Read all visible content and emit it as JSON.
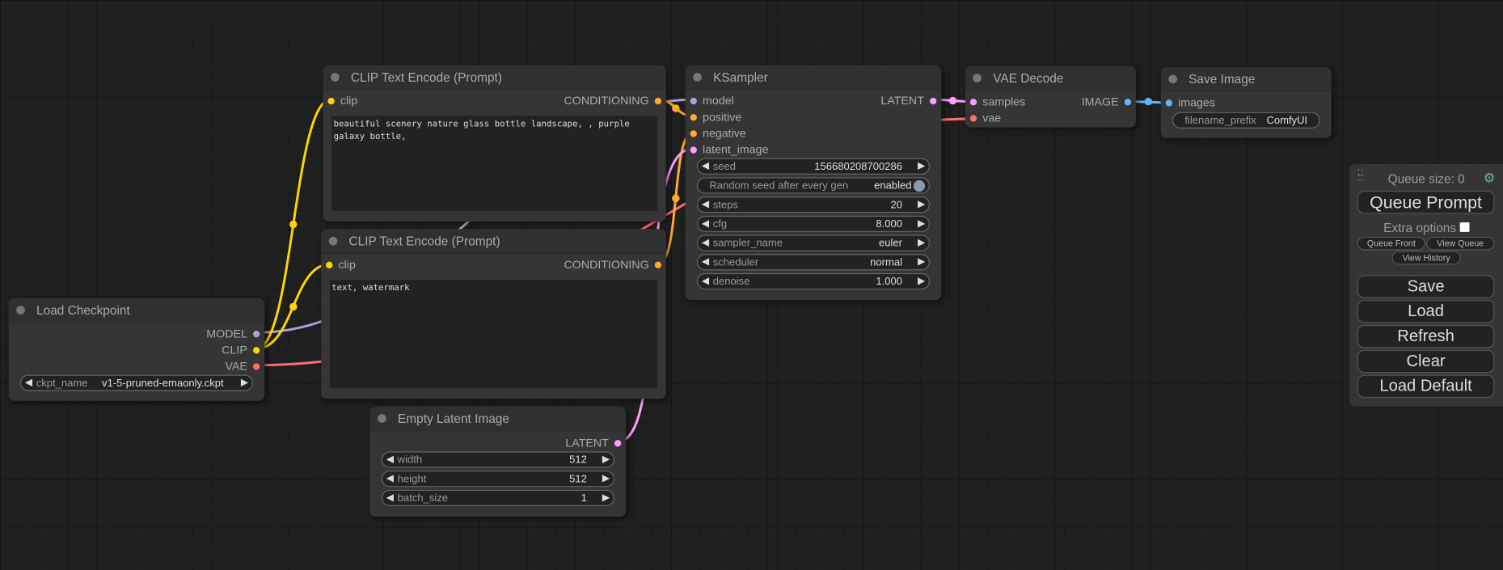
{
  "nodes": {
    "clip1": {
      "title": "CLIP Text Encode (Prompt)",
      "in_clip": "clip",
      "out": "CONDITIONING",
      "text": "beautiful scenery nature glass bottle landscape, , purple galaxy bottle,"
    },
    "clip2": {
      "title": "CLIP Text Encode (Prompt)",
      "in_clip": "clip",
      "out": "CONDITIONING",
      "text": "text, watermark"
    },
    "ckpt": {
      "title": "Load Checkpoint",
      "out_model": "MODEL",
      "out_clip": "CLIP",
      "out_vae": "VAE",
      "ckpt_label": "ckpt_name",
      "ckpt_value": "v1-5-pruned-emaonly.ckpt"
    },
    "latent": {
      "title": "Empty Latent Image",
      "out": "LATENT",
      "width_label": "width",
      "width": "512",
      "height_label": "height",
      "height": "512",
      "batch_label": "batch_size",
      "batch": "1"
    },
    "ksampler": {
      "title": "KSampler",
      "in_model": "model",
      "in_positive": "positive",
      "in_negative": "negative",
      "in_latent": "latent_image",
      "out": "LATENT",
      "seed_label": "seed",
      "seed": "156680208700286",
      "random_label": "Random seed after every gen",
      "random_value": "enabled",
      "steps_label": "steps",
      "steps": "20",
      "cfg_label": "cfg",
      "cfg": "8.000",
      "sampler_label": "sampler_name",
      "sampler": "euler",
      "scheduler_label": "scheduler",
      "scheduler": "normal",
      "denoise_label": "denoise",
      "denoise": "1.000"
    },
    "vae": {
      "title": "VAE Decode",
      "in_samples": "samples",
      "in_vae": "vae",
      "out": "IMAGE"
    },
    "save": {
      "title": "Save Image",
      "in_images": "images",
      "prefix_label": "filename_prefix",
      "prefix": "ComfyUI"
    }
  },
  "panel": {
    "queue_size": "Queue size: 0",
    "queue_prompt": "Queue Prompt",
    "extra_options": "Extra options",
    "queue_front": "Queue Front",
    "view_queue": "View Queue",
    "view_history": "View History",
    "save": "Save",
    "load": "Load",
    "refresh": "Refresh",
    "clear": "Clear",
    "load_default": "Load Default"
  },
  "colors": {
    "model": "#b39ddb",
    "clip": "#ffd500",
    "vae": "#ff6e6e",
    "conditioning": "#ffa931",
    "latent": "#ff9cf9",
    "image": "#64b5f6"
  }
}
